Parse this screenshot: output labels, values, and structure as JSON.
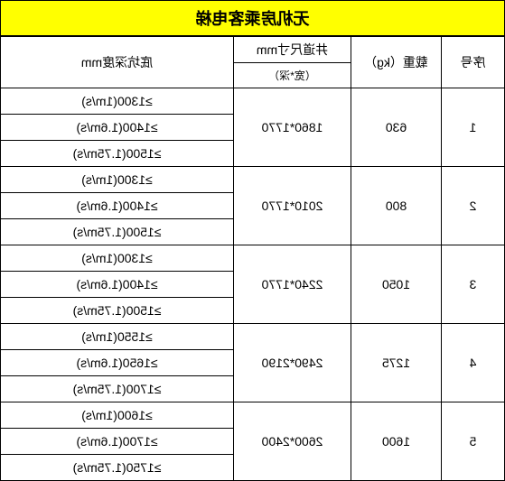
{
  "title": "无机房乘客电梯",
  "headers": {
    "seq": "序号",
    "load": "载重（kg）",
    "dim_top": "井道尺寸mm",
    "dim_sub": "（宽*深）",
    "pit": "底坑深度mm"
  },
  "table": {
    "colors": {
      "title_bg": "#ffff00",
      "border": "#000000",
      "bg": "#ffffff"
    },
    "font_size": 14,
    "rows": [
      {
        "seq": "1",
        "load": "630",
        "dim": "1860*1770",
        "pits": [
          "≥1300(1m/s)",
          "≥1400(1.6m/s)",
          "≥1500(1.75m/s)"
        ]
      },
      {
        "seq": "2",
        "load": "800",
        "dim": "2010*1770",
        "pits": [
          "≥1300(1m/s)",
          "≥1400(1.6m/s)",
          "≥1500(1.75m/s)"
        ]
      },
      {
        "seq": "3",
        "load": "1050",
        "dim": "2240*1770",
        "pits": [
          "≥1300(1m/s)",
          "≥1400(1.6m/s)",
          "≥1500(1.75m/s)"
        ]
      },
      {
        "seq": "4",
        "load": "1275",
        "dim": "2490*2190",
        "pits": [
          "≥1550(1m/s)",
          "≥1650(1.6m/s)",
          "≥1700(1.75m/s)"
        ]
      },
      {
        "seq": "5",
        "load": "1600",
        "dim": "2600*2400",
        "pits": [
          "≥1600(1m/s)",
          "≥1700(1.6m/s)",
          "≥1750(1.75m/s)"
        ]
      }
    ]
  }
}
